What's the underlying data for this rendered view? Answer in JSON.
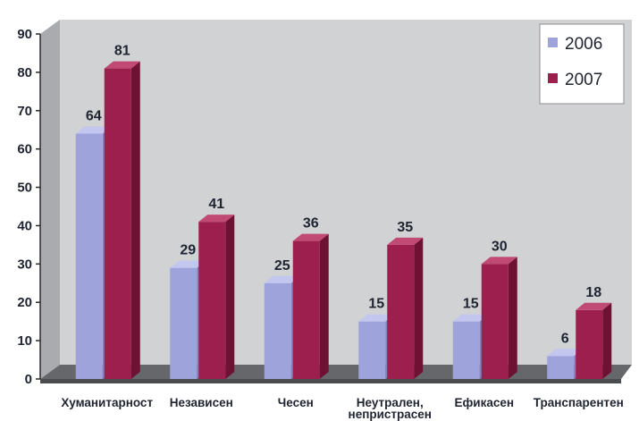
{
  "chart_data": {
    "type": "bar",
    "categories": [
      "Хуманитарност",
      "Независен",
      "Чесен",
      [
        "Неутрален,",
        "непристрасен"
      ],
      "Ефикасен",
      "Транспарентен"
    ],
    "series": [
      {
        "name": "2006",
        "values": [
          64,
          29,
          25,
          15,
          15,
          6
        ],
        "color": "#9fa3dc",
        "top_color": "#c3c6ee",
        "side_color": "#7f83c0"
      },
      {
        "name": "2007",
        "values": [
          81,
          41,
          36,
          35,
          30,
          18
        ],
        "color": "#9c1f4d",
        "top_color": "#c04a73",
        "side_color": "#6d1233"
      }
    ],
    "title": "",
    "xlabel": "",
    "ylabel": "",
    "ylim": [
      0,
      90
    ],
    "yticks": [
      0,
      10,
      20,
      30,
      40,
      50,
      60,
      70,
      80,
      90
    ],
    "grid": false,
    "legend": "top-right",
    "style": "3d-bar",
    "colors": {
      "wall": "#d0d2d4",
      "wall_side": "#a9abae",
      "floor": "#66676a",
      "floor_front": "#4b4c4f"
    }
  }
}
